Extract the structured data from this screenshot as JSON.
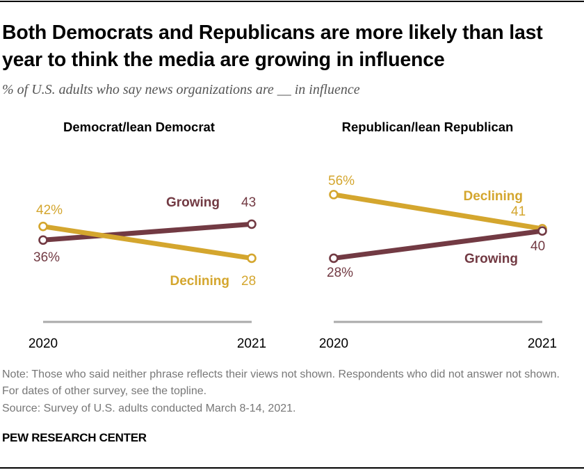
{
  "title": "Both Democrats and Republicans are more likely than last year to think the media are growing in influence",
  "subtitle": "% of U.S. adults who say news organizations are __ in influence",
  "note": "Note: Those who said neither phrase reflects their views not shown. Respondents who did not answer not shown. For dates of other survey, see the topline.",
  "source": "Source: Survey of U.S. adults conducted March 8-14, 2021.",
  "brand": "PEW RESEARCH CENTER",
  "colors": {
    "growing": "#723A43",
    "declining": "#D4A62E",
    "axis": "#AAAAAA"
  },
  "chart_data": [
    {
      "type": "line",
      "title": "Democrat/lean Democrat",
      "x": [
        "2020",
        "2021"
      ],
      "ylim": [
        0,
        60
      ],
      "series": [
        {
          "name": "Growing",
          "values": [
            36,
            43
          ],
          "labels": [
            "36%",
            "43"
          ]
        },
        {
          "name": "Declining",
          "values": [
            42,
            28
          ],
          "labels": [
            "42%",
            "28"
          ]
        }
      ]
    },
    {
      "type": "line",
      "title": "Republican/lean Republican",
      "x": [
        "2020",
        "2021"
      ],
      "ylim": [
        0,
        60
      ],
      "series": [
        {
          "name": "Growing",
          "values": [
            28,
            40
          ],
          "labels": [
            "28%",
            "40"
          ]
        },
        {
          "name": "Declining",
          "values": [
            56,
            41
          ],
          "labels": [
            "56%",
            "41"
          ]
        }
      ]
    }
  ]
}
